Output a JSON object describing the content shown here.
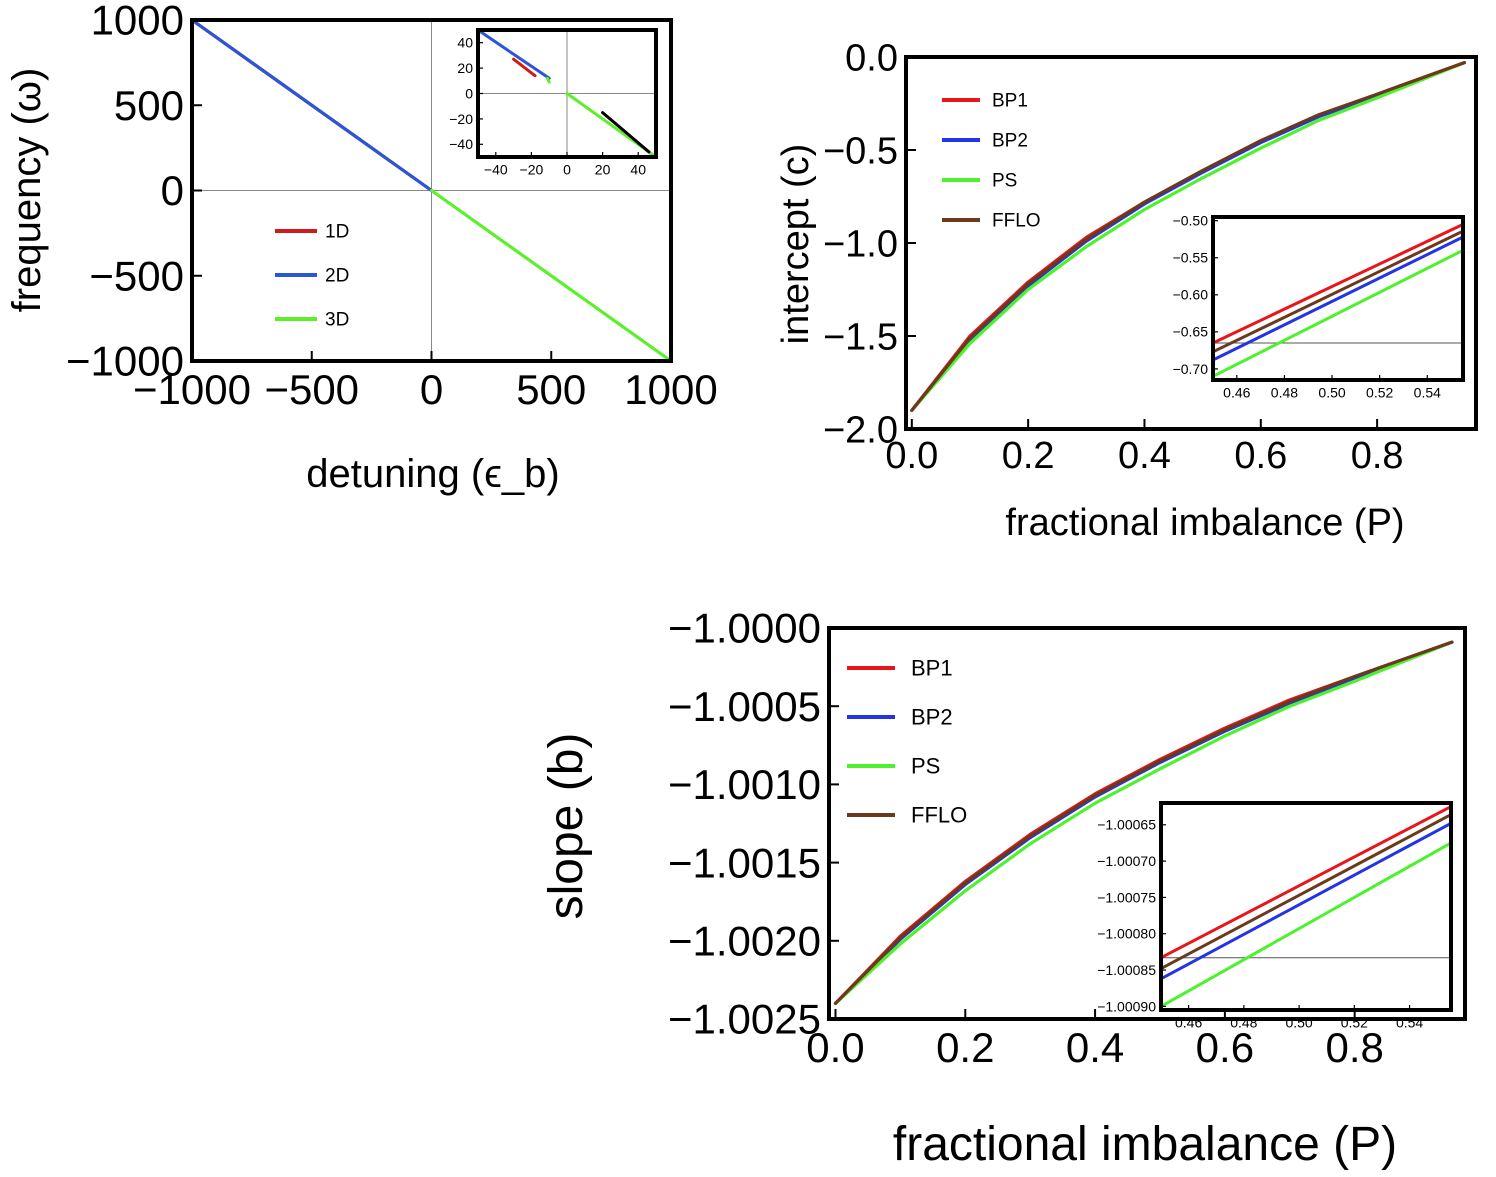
{
  "colors": {
    "bp1": "#e8151b",
    "bp2": "#2334e6",
    "ps": "#4cf22b",
    "ffl": "#6b3a1c",
    "d1": "#d21a1a",
    "d2": "#2a56d8",
    "d3": "#5cf02a"
  },
  "chart_data": [
    {
      "id": "freq",
      "type": "line",
      "xlabel": "detuning (ϵ_b)",
      "ylabel": "frequency (ω)",
      "xlim": [
        -1000,
        1000
      ],
      "ylim": [
        -1000,
        1000
      ],
      "xticks": [
        -1000,
        -500,
        0,
        500,
        1000
      ],
      "xticklabels": [
        "−1000",
        "−500",
        "0",
        "500",
        "1000"
      ],
      "yticks": [
        1000,
        500,
        0,
        -500,
        -1000
      ],
      "yticklabels": [
        "1000",
        "500",
        "0",
        "−500",
        "−1000"
      ],
      "legend": "center-left",
      "series": [
        {
          "name": "1D",
          "color": "d1",
          "x": [
            -1000,
            0
          ],
          "y": [
            1000,
            0
          ]
        },
        {
          "name": "2D",
          "color": "d2",
          "x": [
            -1000,
            0
          ],
          "y": [
            1000,
            0
          ]
        },
        {
          "name": "3D",
          "color": "d3",
          "x": [
            0,
            1000
          ],
          "y": [
            0,
            -1000
          ]
        }
      ],
      "inset": {
        "xlim": [
          -50,
          50
        ],
        "ylim": [
          -50,
          50
        ],
        "xticks": [
          -40,
          -20,
          0,
          20,
          40
        ],
        "xticklabels": [
          "−40",
          "−20",
          "0",
          "20",
          "40"
        ],
        "yticks": [
          40,
          20,
          0,
          -20,
          -40
        ],
        "yticklabels": [
          "40",
          "20",
          "0",
          "−20",
          "−40"
        ],
        "series": [
          {
            "name": "2D",
            "color": "d2",
            "x": [
              -49,
              -10
            ],
            "y": [
              49,
              12
            ]
          },
          {
            "name": "1D",
            "color": "d1",
            "x": [
              -30,
              -18
            ],
            "y": [
              27,
              14
            ]
          },
          {
            "name": "3D",
            "color": "d3",
            "x": [
              -11,
              -10
            ],
            "y": [
              12,
              9
            ]
          },
          {
            "name": "3D",
            "color": "d3",
            "x": [
              0,
              48
            ],
            "y": [
              0,
              -48
            ]
          },
          {
            "name": "black",
            "color": "#000000",
            "x": [
              20,
              46
            ],
            "y": [
              -15,
              -46
            ]
          }
        ]
      }
    },
    {
      "id": "intercept",
      "type": "line",
      "xlabel": "fractional imbalance (P)",
      "ylabel": "intercept (c)",
      "xlim": [
        -0.01,
        0.97
      ],
      "ylim": [
        -2.0,
        0.0
      ],
      "xticks": [
        0.0,
        0.2,
        0.4,
        0.6,
        0.8
      ],
      "xticklabels": [
        "0.0",
        "0.2",
        "0.4",
        "0.6",
        "0.8"
      ],
      "yticks": [
        0.0,
        -0.5,
        -1.0,
        -1.5,
        -2.0
      ],
      "yticklabels": [
        "0.0",
        "−0.5",
        "−1.0",
        "−1.5",
        "−2.0"
      ],
      "legend": "top-left",
      "series": [
        {
          "name": "BP1",
          "color": "bp1",
          "x": [
            0.0,
            0.1,
            0.2,
            0.3,
            0.4,
            0.5,
            0.6,
            0.7,
            0.8,
            0.95
          ],
          "y": [
            -1.9,
            -1.5,
            -1.21,
            -0.97,
            -0.78,
            -0.61,
            -0.45,
            -0.31,
            -0.2,
            -0.03
          ]
        },
        {
          "name": "BP2",
          "color": "bp2",
          "x": [
            0.0,
            0.1,
            0.2,
            0.3,
            0.4,
            0.5,
            0.6,
            0.7,
            0.8,
            0.95
          ],
          "y": [
            -1.9,
            -1.52,
            -1.23,
            -0.99,
            -0.79,
            -0.62,
            -0.46,
            -0.32,
            -0.21,
            -0.03
          ]
        },
        {
          "name": "PS",
          "color": "ps",
          "x": [
            0.0,
            0.1,
            0.2,
            0.3,
            0.4,
            0.5,
            0.6,
            0.7,
            0.8,
            0.95
          ],
          "y": [
            -1.9,
            -1.54,
            -1.25,
            -1.02,
            -0.82,
            -0.65,
            -0.49,
            -0.34,
            -0.22,
            -0.03
          ]
        },
        {
          "name": "FFLO",
          "color": "ffl",
          "x": [
            0.0,
            0.1,
            0.2,
            0.3,
            0.4,
            0.5,
            0.6,
            0.7,
            0.8,
            0.95
          ],
          "y": [
            -1.9,
            -1.51,
            -1.22,
            -0.98,
            -0.78,
            -0.61,
            -0.45,
            -0.31,
            -0.2,
            -0.03
          ]
        }
      ],
      "inset": {
        "xlim": [
          0.45,
          0.555
        ],
        "ylim": [
          -0.715,
          -0.495
        ],
        "xticks": [
          0.46,
          0.48,
          0.5,
          0.52,
          0.54
        ],
        "xticklabels": [
          "0.46",
          "0.48",
          "0.50",
          "0.52",
          "0.54"
        ],
        "yticks": [
          -0.5,
          -0.55,
          -0.6,
          -0.65,
          -0.7
        ],
        "yticklabels": [
          "−0.50",
          "−0.55",
          "−0.60",
          "−0.65",
          "−0.70"
        ],
        "hline": -0.665,
        "series": [
          {
            "name": "BP1",
            "color": "bp1",
            "x": [
              0.45,
              0.555
            ],
            "y": [
              -0.665,
              -0.505
            ]
          },
          {
            "name": "FFLO",
            "color": "ffl",
            "x": [
              0.45,
              0.555
            ],
            "y": [
              -0.677,
              -0.514
            ]
          },
          {
            "name": "BP2",
            "color": "bp2",
            "x": [
              0.45,
              0.555
            ],
            "y": [
              -0.688,
              -0.522
            ]
          },
          {
            "name": "PS",
            "color": "ps",
            "x": [
              0.45,
              0.555
            ],
            "y": [
              -0.71,
              -0.54
            ]
          }
        ]
      }
    },
    {
      "id": "slope",
      "type": "line",
      "xlabel": "fractional imbalance (P)",
      "ylabel": "slope (b)",
      "xlim": [
        -0.01,
        0.97
      ],
      "ylim": [
        -1.0025,
        -1.0
      ],
      "xticks": [
        0.0,
        0.2,
        0.4,
        0.6,
        0.8
      ],
      "xticklabels": [
        "0.0",
        "0.2",
        "0.4",
        "0.6",
        "0.8"
      ],
      "yticks": [
        -1.0,
        -1.0005,
        -1.001,
        -1.0015,
        -1.002,
        -1.0025
      ],
      "yticklabels": [
        "−1.0000",
        "−1.0005",
        "−1.0010",
        "−1.0015",
        "−1.0020",
        "−1.0025"
      ],
      "legend": "top-left",
      "series": [
        {
          "name": "BP1",
          "color": "bp1",
          "x": [
            0.0,
            0.1,
            0.2,
            0.3,
            0.4,
            0.5,
            0.6,
            0.7,
            0.8,
            0.95
          ],
          "y": [
            -1.0024,
            -1.00197,
            -1.00162,
            -1.00132,
            -1.00106,
            -1.00084,
            -1.00064,
            -1.00046,
            -1.00031,
            -1.00009
          ]
        },
        {
          "name": "BP2",
          "color": "bp2",
          "x": [
            0.0,
            0.1,
            0.2,
            0.3,
            0.4,
            0.5,
            0.6,
            0.7,
            0.8,
            0.95
          ],
          "y": [
            -1.0024,
            -1.00199,
            -1.00164,
            -1.00134,
            -1.00108,
            -1.00086,
            -1.00066,
            -1.00048,
            -1.00032,
            -1.00009
          ]
        },
        {
          "name": "PS",
          "color": "ps",
          "x": [
            0.0,
            0.1,
            0.2,
            0.3,
            0.4,
            0.5,
            0.6,
            0.7,
            0.8,
            0.95
          ],
          "y": [
            -1.0024,
            -1.00202,
            -1.00168,
            -1.00138,
            -1.00112,
            -1.0009,
            -1.00069,
            -1.0005,
            -1.00034,
            -1.00009
          ]
        },
        {
          "name": "FFLO",
          "color": "ffl",
          "x": [
            0.0,
            0.1,
            0.2,
            0.3,
            0.4,
            0.5,
            0.6,
            0.7,
            0.8,
            0.95
          ],
          "y": [
            -1.0024,
            -1.00198,
            -1.00163,
            -1.00133,
            -1.00107,
            -1.00085,
            -1.00065,
            -1.00047,
            -1.00031,
            -1.00009
          ]
        }
      ],
      "inset": {
        "xlim": [
          0.45,
          0.555
        ],
        "ylim": [
          -1.000905,
          -1.00062
        ],
        "xticks": [
          0.46,
          0.48,
          0.5,
          0.52,
          0.54
        ],
        "xticklabels": [
          "0.46",
          "0.48",
          "0.50",
          "0.52",
          "0.54"
        ],
        "yticks": [
          -1.00065,
          -1.0007,
          -1.00075,
          -1.0008,
          -1.00085,
          -1.0009
        ],
        "yticklabels": [
          "−1.00065",
          "−1.00070",
          "−1.00075",
          "−1.00080",
          "−1.00085",
          "−1.00090"
        ],
        "hline": -1.000833,
        "series": [
          {
            "name": "BP1",
            "color": "bp1",
            "x": [
              0.45,
              0.555
            ],
            "y": [
              -1.000833,
              -1.000625
            ]
          },
          {
            "name": "FFLO",
            "color": "ffl",
            "x": [
              0.45,
              0.555
            ],
            "y": [
              -1.000848,
              -1.000636
            ]
          },
          {
            "name": "BP2",
            "color": "bp2",
            "x": [
              0.45,
              0.555
            ],
            "y": [
              -1.000862,
              -1.000648
            ]
          },
          {
            "name": "PS",
            "color": "ps",
            "x": [
              0.45,
              0.555
            ],
            "y": [
              -1.0009,
              -1.000675
            ]
          }
        ]
      }
    }
  ]
}
